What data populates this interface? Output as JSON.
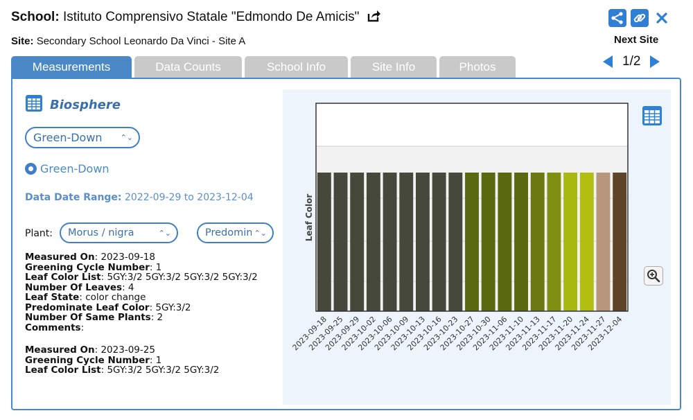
{
  "header": {
    "school_label": "School:",
    "school_name": "Istituto Comprensivo Statale \"Edmondo De Amicis\"",
    "site_label": "Site:",
    "site_name": "Secondary School Leonardo Da Vinci - Site A",
    "icons": [
      "share-out-icon",
      "share-icon",
      "link-icon",
      "close-icon"
    ]
  },
  "navigation": {
    "next_site_label": "Next Site",
    "page_indicator": "1/2"
  },
  "tabs": [
    {
      "label": "Measurements",
      "active": true
    },
    {
      "label": "Data Counts",
      "active": false
    },
    {
      "label": "School Info",
      "active": false
    },
    {
      "label": "Site Info",
      "active": false
    },
    {
      "label": "Photos",
      "active": false
    }
  ],
  "protocol": {
    "sphere_label": "Biosphere",
    "dataset_select": "Green-Down",
    "radio_option": "Green-Down",
    "date_range_label": "Data Date Range:",
    "date_range_value": "2022-09-29 to 2023-12-04"
  },
  "filters": {
    "plant_label": "Plant:",
    "plant_select": "Morus / nigra",
    "variable_select": "Predominant Leaf Color"
  },
  "records": [
    {
      "measured_on_label": "Measured On",
      "measured_on": "2023-09-18",
      "cycle_label": "Greening Cycle Number",
      "cycle": "1",
      "color_list_label": "Leaf Color List",
      "color_list": "5GY:3/2 5GY:3/2 5GY:3/2 5GY:3/2",
      "leaves_label": "Number Of Leaves",
      "leaves": "4",
      "state_label": "Leaf State",
      "state": "color change",
      "predominant_label": "Predominate Leaf Color",
      "predominant": "5GY:3/2",
      "same_plants_label": "Number Of Same Plants",
      "same_plants": "2",
      "comments_label": "Comments",
      "comments": ""
    },
    {
      "measured_on_label": "Measured On",
      "measured_on": "2023-09-25",
      "cycle_label": "Greening Cycle Number",
      "cycle": "1",
      "color_list_label": "Leaf Color List",
      "color_list": "5GY:3/2 5GY:3/2 5GY:3/2"
    }
  ],
  "chart_data": {
    "type": "bar",
    "ylabel": "Leaf Color",
    "xlabel": "",
    "title": "",
    "grid": true,
    "categories": [
      "2023-09-18",
      "2023-09-25",
      "2023-09-29",
      "2023-10-02",
      "2023-10-06",
      "2023-10-09",
      "2023-10-13",
      "2023-10-16",
      "2023-10-23",
      "2023-10-27",
      "2023-10-30",
      "2023-11-06",
      "2023-11-10",
      "2023-11-13",
      "2023-11-17",
      "2023-11-20",
      "2023-11-24",
      "2023-11-27",
      "2023-12-04"
    ],
    "values": [
      1,
      1,
      1,
      1,
      1,
      1,
      1,
      1,
      1,
      1,
      1,
      1,
      1,
      1,
      1,
      1,
      1,
      1,
      1
    ],
    "ylim": [
      0,
      1.35
    ],
    "bar_colors": [
      "#45483a",
      "#45483a",
      "#45483a",
      "#45483a",
      "#45483a",
      "#45483a",
      "#45483a",
      "#45483a",
      "#45483a",
      "#5a6810",
      "#5a6810",
      "#5a6810",
      "#5a6810",
      "#6b7a10",
      "#7f8f10",
      "#a8b810",
      "#b2bf10",
      "#b8967b",
      "#5e4328"
    ]
  }
}
